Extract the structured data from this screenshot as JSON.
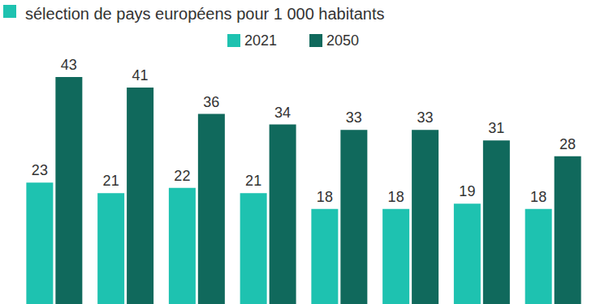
{
  "chart_data": {
    "type": "bar",
    "title": "sélection de pays européens pour 1 000 habitants",
    "categories": [
      null,
      null,
      null,
      null,
      null,
      null,
      null,
      null
    ],
    "series": [
      {
        "name": "2021",
        "color": "#1ec2b0",
        "values": [
          23,
          21,
          22,
          21,
          18,
          18,
          19,
          18
        ]
      },
      {
        "name": "2050",
        "color": "#10695c",
        "values": [
          43,
          41,
          36,
          34,
          33,
          33,
          31,
          28
        ]
      }
    ],
    "ylim": [
      0,
      45
    ],
    "data_labels": true,
    "tick_labels": false,
    "grid": false,
    "legend": "top"
  }
}
